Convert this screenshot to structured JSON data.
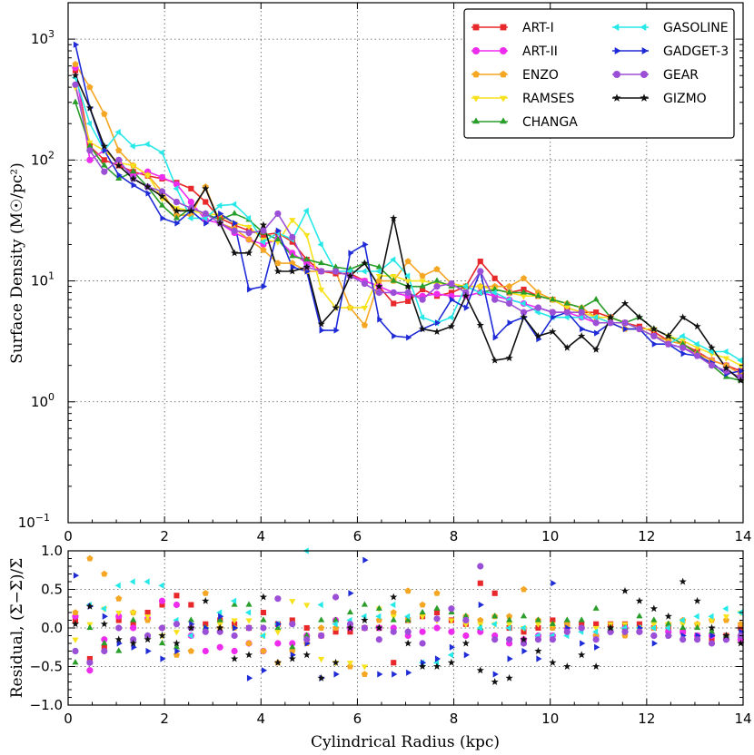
{
  "chart_data": [
    {
      "type": "line",
      "id": "surface",
      "ylabel": "Surface Density (M☉/pc²)",
      "xlabel": "",
      "yscale": "log",
      "xlim": [
        0,
        14
      ],
      "ylim": [
        0.1,
        2000
      ],
      "xticks": [
        "0",
        "2",
        "4",
        "6",
        "8",
        "10",
        "12",
        "14"
      ],
      "yticks": [
        {
          "value": 0.1,
          "base": "10",
          "exp": "−1"
        },
        {
          "value": 1,
          "base": "10",
          "exp": "0"
        },
        {
          "value": 10,
          "base": "10",
          "exp": "1"
        },
        {
          "value": 100,
          "base": "10",
          "exp": "2"
        },
        {
          "value": 1000,
          "base": "10",
          "exp": "3"
        }
      ],
      "grid": true,
      "legend_position": "top-right",
      "x": [
        0.15,
        0.45,
        0.75,
        1.05,
        1.35,
        1.65,
        1.95,
        2.25,
        2.55,
        2.85,
        3.15,
        3.45,
        3.75,
        4.05,
        4.35,
        4.65,
        4.95,
        5.25,
        5.55,
        5.85,
        6.15,
        6.45,
        6.75,
        7.05,
        7.35,
        7.65,
        7.95,
        8.25,
        8.55,
        8.85,
        9.15,
        9.45,
        9.75,
        10.05,
        10.35,
        10.65,
        10.95,
        11.25,
        11.55,
        11.85,
        12.15,
        12.45,
        12.75,
        13.05,
        13.35,
        13.65,
        13.95
      ],
      "series": [
        {
          "name": "ART-I",
          "color": "#e8282a",
          "marker": "square",
          "values": [
            550,
            130,
            100,
            90,
            80,
            74,
            70,
            65,
            58,
            45,
            33,
            29,
            26,
            24,
            25,
            21,
            15,
            12,
            11.5,
            11.5,
            10,
            9,
            6.5,
            6.8,
            8.5,
            7.5,
            8,
            9,
            14.5,
            10.5,
            8,
            8.5,
            7.5,
            7,
            6,
            5.5,
            5.5,
            5,
            4.5,
            4.2,
            3.8,
            3.2,
            3,
            2.6,
            2.2,
            2,
            1.8
          ]
        },
        {
          "name": "ART-II",
          "color": "#ee2cee",
          "marker": "circle",
          "values": [
            580,
            100,
            120,
            95,
            75,
            80,
            72,
            63,
            45,
            32,
            30,
            25,
            22,
            20,
            22,
            17,
            14,
            12,
            12,
            11,
            10,
            9,
            8,
            7.5,
            7.5,
            7.8,
            7.5,
            7.5,
            8,
            7.5,
            7,
            6.5,
            6,
            5.5,
            5.5,
            5,
            4.5,
            4.5,
            4.5,
            4,
            3.5,
            3,
            2.8,
            2.5,
            2.2,
            2,
            1.7
          ]
        },
        {
          "name": "ENZO",
          "color": "#f5a623",
          "marker": "pentagon",
          "values": [
            620,
            400,
            240,
            120,
            90,
            75,
            55,
            35,
            35,
            60,
            30,
            27,
            22,
            18,
            14,
            14,
            12,
            12,
            12,
            6,
            4.3,
            10,
            10,
            14.5,
            11,
            12.5,
            9.5,
            9,
            9,
            9,
            9,
            10.5,
            8,
            7,
            6.5,
            6,
            5,
            4.5,
            4,
            4,
            3.5,
            3.2,
            3,
            2.5,
            2.2,
            2,
            1.7
          ]
        },
        {
          "name": "RAMSES",
          "color": "#f7e21c",
          "marker": "triangle-down",
          "values": [
            400,
            140,
            120,
            95,
            90,
            75,
            48,
            40,
            38,
            36,
            35,
            30,
            28,
            22,
            21,
            32,
            24,
            8.5,
            6,
            6,
            6,
            11,
            11,
            10,
            10,
            9.5,
            9.5,
            9,
            9,
            8.5,
            8,
            7.5,
            7.5,
            7,
            6,
            5.5,
            5,
            5,
            4.5,
            4,
            4,
            3.5,
            3.2,
            2.8,
            2.5,
            2.3,
            2
          ]
        },
        {
          "name": "CHANGA",
          "color": "#2a9e2a",
          "marker": "triangle-up",
          "values": [
            300,
            130,
            90,
            70,
            80,
            60,
            42,
            33,
            40,
            36,
            32,
            36,
            32,
            25,
            22,
            16,
            15,
            14,
            13,
            12.5,
            14,
            13,
            10,
            9,
            9,
            10,
            9,
            9,
            8,
            8.5,
            8,
            8,
            7.5,
            7,
            6.5,
            6,
            7,
            5,
            4.5,
            5,
            4,
            3.5,
            3,
            2.5,
            2,
            1.6,
            1.5
          ]
        },
        {
          "name": "GASOLINE",
          "color": "#27e8e8",
          "marker": "triangle-left",
          "values": [
            480,
            200,
            120,
            170,
            130,
            135,
            115,
            58,
            33,
            33,
            42,
            43,
            33,
            21,
            25,
            22,
            38,
            20,
            12,
            12,
            12,
            12,
            15,
            11,
            5,
            4.5,
            5,
            9,
            8,
            8,
            7,
            6.5,
            5.5,
            5,
            5,
            5,
            5,
            4.5,
            4.5,
            4,
            3.5,
            3,
            3.5,
            3,
            2.6,
            2.6,
            2.2
          ]
        },
        {
          "name": "GADGET-3",
          "color": "#1f2bd6",
          "marker": "triangle-right",
          "values": [
            900,
            270,
            120,
            75,
            62,
            53,
            33,
            30,
            38,
            30,
            36,
            30,
            8.5,
            9,
            26,
            13,
            12,
            3.9,
            3.9,
            17,
            20,
            4.8,
            3.5,
            3.4,
            4,
            4.5,
            7,
            6,
            12,
            3.4,
            4.5,
            5,
            3.3,
            5,
            5.5,
            4,
            3.7,
            4.5,
            4,
            4,
            3,
            3,
            2.5,
            2.4,
            2.1,
            1.7,
            1.8
          ]
        },
        {
          "name": "GEAR",
          "color": "#9b4fd6",
          "marker": "circle",
          "values": [
            420,
            120,
            80,
            100,
            70,
            60,
            55,
            45,
            40,
            36,
            30,
            26,
            25,
            26,
            36,
            23,
            13,
            12,
            12,
            11,
            9.5,
            8,
            8,
            8,
            7,
            9,
            9.5,
            8,
            12,
            7,
            6.5,
            5.5,
            6,
            5.5,
            5.5,
            5.5,
            4.5,
            4.5,
            4.5,
            4,
            3.5,
            3,
            2.8,
            2.4,
            2,
            1.8,
            1.6
          ]
        },
        {
          "name": "GIZMO",
          "color": "#111111",
          "marker": "star",
          "values": [
            500,
            270,
            130,
            90,
            70,
            60,
            50,
            38,
            38,
            58,
            30,
            17,
            17,
            29,
            12,
            12,
            13,
            4.4,
            6,
            11,
            14,
            9,
            33,
            9,
            4,
            3.8,
            4.2,
            7.5,
            4.3,
            2.2,
            2.3,
            5,
            3.5,
            3.8,
            2.8,
            3.5,
            2.7,
            5,
            6.5,
            5,
            4,
            3.5,
            5,
            4.2,
            2.8,
            1.9,
            1.5
          ]
        }
      ]
    },
    {
      "type": "scatter",
      "id": "residual",
      "ylabel": "Residual, (Σ−Σ̄)/Σ̄",
      "xlabel": "Cylindrical Radius (kpc)",
      "xlim": [
        0,
        14
      ],
      "ylim": [
        -1.0,
        1.0
      ],
      "xticks": [
        "0",
        "2",
        "4",
        "6",
        "8",
        "10",
        "12",
        "14"
      ],
      "yticks": [
        "−1.0",
        "−0.5",
        "0.0",
        "0.5",
        "1.0"
      ],
      "ytick_values": [
        -1.0,
        -0.5,
        0.0,
        0.5,
        1.0
      ],
      "grid": true,
      "series": [
        {
          "name": "ART-I",
          "values": [
            0.1,
            -0.4,
            -0.25,
            0.1,
            0.05,
            0.2,
            0.3,
            0.42,
            0.3,
            0.05,
            0.1,
            0.05,
            0.0,
            0.2,
            0.05,
            0.1,
            0.0,
            -0.1,
            -0.05,
            -0.05,
            0.0,
            0.0,
            -0.45,
            0.1,
            0.15,
            0.2,
            0.1,
            0.05,
            0.58,
            0.45,
            0.0,
            -0.05,
            0.0,
            0.1,
            0.05,
            0.05,
            0.05,
            0.05,
            0.05,
            0.05,
            0.0,
            0.0,
            -0.05,
            -0.1,
            -0.15,
            -0.1,
            0.0
          ]
        },
        {
          "name": "ART-II",
          "values": [
            0.15,
            -0.55,
            -0.15,
            0.15,
            0.0,
            0.12,
            0.35,
            0.3,
            -0.1,
            -0.3,
            -0.25,
            -0.3,
            -0.2,
            -0.3,
            -0.2,
            -0.2,
            -0.1,
            -0.1,
            0.1,
            0.0,
            0.0,
            0.0,
            0.0,
            -0.1,
            -0.05,
            0.0,
            -0.05,
            -0.1,
            -0.05,
            -0.1,
            -0.2,
            -0.15,
            -0.1,
            -0.1,
            0.0,
            0.0,
            -0.1,
            -0.05,
            0.0,
            -0.05,
            -0.1,
            -0.05,
            -0.05,
            -0.1,
            -0.1,
            -0.15,
            -0.15
          ]
        },
        {
          "name": "ENZO",
          "values": [
            0.2,
            0.9,
            0.7,
            0.38,
            0.2,
            0.1,
            0.0,
            -0.35,
            -0.3,
            0.45,
            0.0,
            0.0,
            -0.2,
            -0.3,
            -0.45,
            -0.3,
            -0.2,
            0.0,
            0.0,
            -0.5,
            -0.6,
            0.1,
            0.2,
            0.48,
            0.3,
            0.45,
            0.25,
            0.15,
            0.1,
            0.15,
            0.15,
            0.5,
            0.1,
            0.0,
            0.05,
            0.0,
            -0.1,
            -0.05,
            -0.1,
            0.0,
            0.0,
            0.05,
            0.1,
            0.05,
            0.1,
            0.1,
            0.05
          ]
        },
        {
          "name": "RAMSES",
          "values": [
            -0.15,
            0.05,
            0.25,
            0.2,
            0.2,
            0.15,
            -0.1,
            -0.05,
            0.0,
            0.0,
            0.05,
            0.1,
            0.1,
            -0.1,
            -0.05,
            0.35,
            0.3,
            -0.4,
            -0.45,
            -0.45,
            -0.5,
            0.25,
            0.15,
            0.1,
            0.15,
            0.1,
            0.1,
            0.05,
            0.05,
            0.05,
            0.05,
            0.0,
            0.05,
            0.05,
            0.0,
            0.0,
            0.0,
            0.05,
            0.05,
            0.0,
            0.05,
            0.05,
            0.05,
            0.05,
            0.1,
            0.15,
            0.2
          ]
        },
        {
          "name": "CHANGA",
          "values": [
            -0.45,
            0.0,
            -0.2,
            -0.3,
            0.1,
            -0.1,
            -0.2,
            -0.25,
            0.1,
            0.0,
            0.1,
            0.3,
            0.3,
            0.1,
            0.0,
            -0.25,
            -0.1,
            0.1,
            0.1,
            0.2,
            0.3,
            0.25,
            0.1,
            0.1,
            0.2,
            0.25,
            0.2,
            0.15,
            0.0,
            0.15,
            0.1,
            0.15,
            0.1,
            0.05,
            0.1,
            0.1,
            0.25,
            0.0,
            0.0,
            0.15,
            0.1,
            0.05,
            0.0,
            0.0,
            -0.05,
            -0.1,
            -0.1
          ]
        },
        {
          "name": "GASOLINE",
          "values": [
            -0.3,
            0.3,
            0.25,
            0.55,
            0.6,
            0.6,
            0.55,
            0.1,
            -0.1,
            -0.05,
            0.2,
            0.35,
            0.2,
            -0.1,
            0.05,
            0.05,
            1.0,
            0.3,
            0.05,
            0.1,
            0.15,
            0.15,
            0.3,
            0.15,
            -0.45,
            -0.45,
            -0.35,
            0.1,
            0.0,
            0.05,
            0.0,
            0.0,
            -0.1,
            -0.1,
            -0.1,
            -0.05,
            -0.05,
            -0.05,
            0.0,
            0.0,
            0.0,
            0.0,
            0.1,
            0.15,
            0.15,
            0.25,
            0.2
          ]
        },
        {
          "name": "GADGET-3",
          "values": [
            0.68,
            0.28,
            0.15,
            -0.2,
            -0.25,
            -0.3,
            -0.4,
            -0.3,
            0.05,
            0.0,
            0.15,
            0.0,
            -0.65,
            -0.55,
            0.05,
            -0.35,
            -0.2,
            -0.65,
            -0.6,
            0.45,
            0.88,
            -0.6,
            -0.6,
            -0.58,
            -0.45,
            -0.4,
            -0.25,
            -0.35,
            0.3,
            -0.6,
            -0.4,
            -0.3,
            -0.4,
            0.58,
            0.0,
            -0.2,
            -0.25,
            -0.05,
            -0.05,
            0.0,
            -0.2,
            -0.1,
            -0.1,
            -0.1,
            -0.1,
            -0.15,
            -0.05
          ]
        },
        {
          "name": "GEAR",
          "values": [
            -0.3,
            -0.45,
            -0.3,
            0.0,
            -0.15,
            -0.1,
            0.0,
            0.05,
            0.0,
            -0.05,
            -0.05,
            -0.1,
            0.0,
            0.0,
            0.38,
            0.05,
            -0.15,
            -0.1,
            0.4,
            0.05,
            0.0,
            -0.15,
            -0.05,
            -0.05,
            -0.2,
            0.12,
            0.25,
            0.1,
            0.8,
            -0.15,
            -0.15,
            -0.2,
            -0.15,
            -0.15,
            -0.05,
            0.0,
            -0.15,
            -0.05,
            -0.05,
            -0.05,
            -0.1,
            -0.1,
            -0.15,
            -0.15,
            -0.2,
            -0.15,
            -0.1
          ]
        },
        {
          "name": "GIZMO",
          "values": [
            0.05,
            0.28,
            0.05,
            -0.15,
            -0.2,
            -0.15,
            -0.1,
            -0.2,
            0.0,
            0.35,
            0.0,
            -0.4,
            -0.35,
            0.4,
            -0.45,
            -0.4,
            -0.35,
            -0.65,
            -0.45,
            0.0,
            0.1,
            0.0,
            0.4,
            -0.2,
            -0.5,
            -0.5,
            -0.45,
            -0.2,
            -0.55,
            -0.7,
            -0.65,
            -0.15,
            -0.3,
            -0.45,
            -0.5,
            -0.35,
            -0.5,
            0.0,
            0.48,
            0.35,
            0.25,
            0.15,
            0.6,
            0.35,
            0.0,
            -0.1,
            -0.2
          ]
        }
      ]
    }
  ]
}
